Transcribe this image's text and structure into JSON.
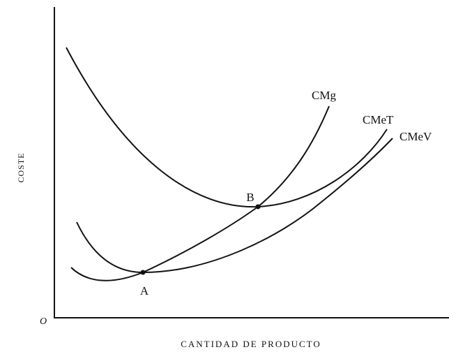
{
  "axes": {
    "y_label": "COSTE",
    "x_label": "CANTIDAD DE PRODUCTO",
    "origin": "O"
  },
  "curves": [
    {
      "label": "CMg"
    },
    {
      "label": "CMeT"
    },
    {
      "label": "CMeV"
    }
  ],
  "points": [
    {
      "label": "A"
    },
    {
      "label": "B"
    }
  ]
}
